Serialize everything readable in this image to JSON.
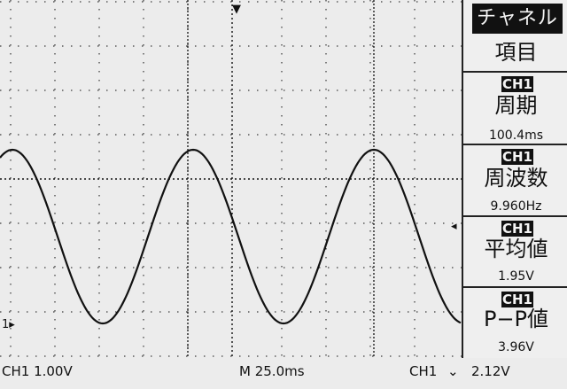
{
  "menu": {
    "header": "チャネル",
    "item_label": "項目",
    "measurements": [
      {
        "channel": "CH1",
        "label": "周期",
        "value": "100.4ms"
      },
      {
        "channel": "CH1",
        "label": "周波数",
        "value": "9.960Hz"
      },
      {
        "channel": "CH1",
        "label": "平均値",
        "value": "1.95V"
      },
      {
        "channel": "CH1",
        "label": "P−P値",
        "value": "3.96V"
      }
    ]
  },
  "status": {
    "ch_scale": "CH1  1.00V",
    "timebase": "M 25.0ms",
    "trigger_source": "CH1",
    "trigger_slope": "⌄",
    "trigger_level": "2.12V"
  },
  "markers": {
    "ground": "1▸",
    "trigger_level": "◂",
    "trigger_pos": "▼"
  },
  "colors": {
    "trace": "#111111",
    "grid": "#111111",
    "background": "#ececec"
  }
}
